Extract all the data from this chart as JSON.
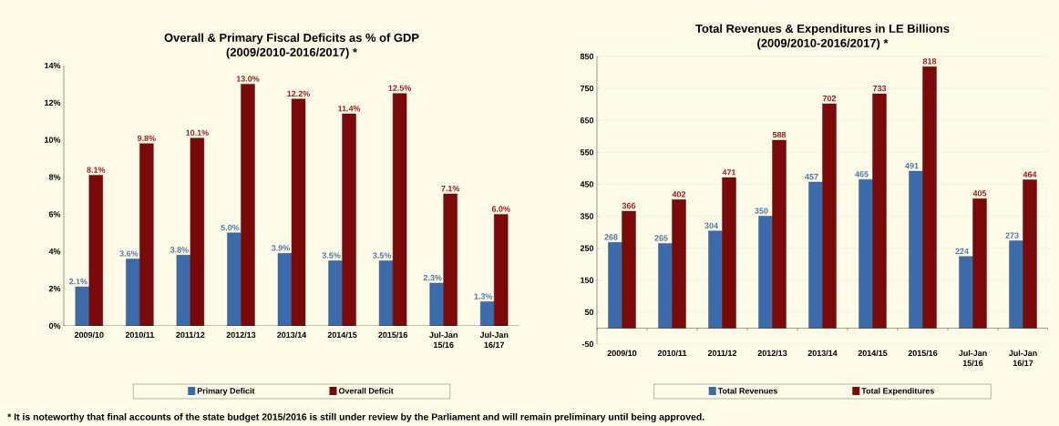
{
  "chart_data": [
    {
      "type": "bar",
      "title": "Overall & Primary Fiscal Deficits as % of GDP",
      "subtitle": "(2009/2010-2016/2017) *",
      "categories": [
        "2009/10",
        "2010/11",
        "2011/12",
        "2012/13",
        "2013/14",
        "2014/15",
        "2015/16",
        "Jul-Jan 15/16",
        "Jul-Jan 16/17"
      ],
      "series": [
        {
          "name": "Primary Deficit",
          "color": "#3d6aa8",
          "values": [
            2.1,
            3.6,
            3.8,
            5.0,
            3.9,
            3.5,
            3.5,
            2.3,
            1.3
          ],
          "value_labels": [
            "2.1%",
            "3.6%",
            "3.8%",
            "5.0%",
            "3.9%",
            "3.5%",
            "3.5%",
            "2.3%",
            "1.3%"
          ]
        },
        {
          "name": "Overall Deficit",
          "color": "#7a0a0a",
          "values": [
            8.1,
            9.8,
            10.1,
            13.0,
            12.2,
            11.4,
            12.5,
            7.1,
            6.0
          ],
          "value_labels": [
            "8.1%",
            "9.8%",
            "10.1%",
            "13.0%",
            "12.2%",
            "11.4%",
            "12.5%",
            "7.1%",
            "6.0%"
          ]
        }
      ],
      "ylim": [
        0,
        14
      ],
      "yticks": [
        {
          "value": 0,
          "label": "0%"
        },
        {
          "value": 2,
          "label": "2%"
        },
        {
          "value": 4,
          "label": "4%"
        },
        {
          "value": 6,
          "label": "6%"
        },
        {
          "value": 8,
          "label": "8%"
        },
        {
          "value": 10,
          "label": "10%"
        },
        {
          "value": 12,
          "label": "12%"
        },
        {
          "value": 14,
          "label": "14%"
        }
      ],
      "legend": "bottom",
      "annotations": [
        "* It is noteworthy that final accounts of the state budget 2015/2016 is still under review by the Parliament and will remain preliminary until being approved."
      ]
    },
    {
      "type": "bar",
      "title": "Total Revenues & Expenditures in LE Billions",
      "subtitle": "(2009/2010-2016/2017) *",
      "categories": [
        "2009/10",
        "2010/11",
        "2011/12",
        "2012/13",
        "2013/14",
        "2014/15",
        "2015/16",
        "Jul-Jan 15/16",
        "Jul-Jan 16/17"
      ],
      "series": [
        {
          "name": "Total Revenues",
          "color": "#3d6aa8",
          "values": [
            268,
            265,
            304,
            350,
            457,
            465,
            491,
            224,
            273
          ]
        },
        {
          "name": "Total Expenditures",
          "color": "#7a0a0a",
          "values": [
            366,
            402,
            471,
            588,
            702,
            733,
            818,
            405,
            464
          ]
        }
      ],
      "ylim": [
        -50,
        850
      ],
      "yticks": [
        -50,
        50,
        150,
        250,
        350,
        450,
        550,
        650,
        750,
        850
      ],
      "data_labels": true,
      "grid": "y",
      "legend": "bottom"
    }
  ]
}
